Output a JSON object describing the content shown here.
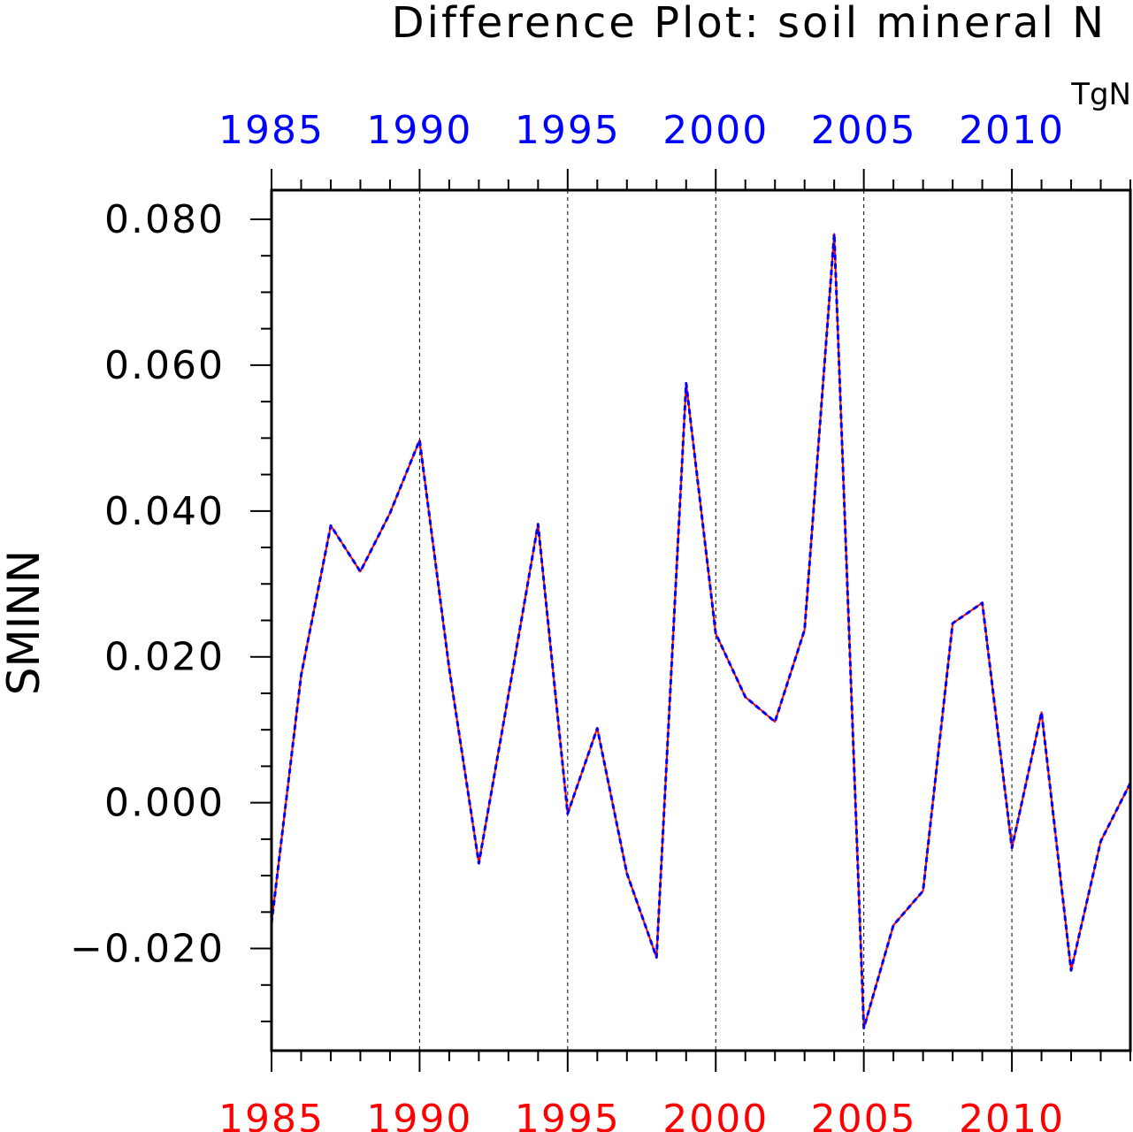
{
  "chart_data": {
    "type": "line",
    "title": "Difference Plot: soil mineral N",
    "units": "TgN",
    "ylabel": "SMINN",
    "xlim": [
      1985,
      2014
    ],
    "ylim": [
      -0.034,
      0.084
    ],
    "x_ticks": [
      "1985",
      "1990",
      "1995",
      "2000",
      "2005",
      "2010"
    ],
    "y_ticks": [
      "0.080",
      "0.060",
      "0.040",
      "0.020",
      "0.000",
      "−0.020"
    ],
    "x_tick_values": [
      1985,
      1990,
      1995,
      2000,
      2005,
      2010
    ],
    "y_tick_values": [
      0.08,
      0.06,
      0.04,
      0.02,
      0.0,
      -0.02
    ],
    "grid": "vertical dashed at major x ticks",
    "x": [
      1985,
      1986,
      1987,
      1988,
      1989,
      1990,
      1991,
      1992,
      1993,
      1994,
      1995,
      1996,
      1997,
      1998,
      1999,
      2000,
      2001,
      2002,
      2003,
      2004,
      2005,
      2006,
      2007,
      2008,
      2009,
      2010,
      2011,
      2012,
      2013,
      2014
    ],
    "series": [
      {
        "color": "#ff0000",
        "style": "solid",
        "values": [
          -0.0165,
          0.0175,
          0.038,
          0.0317,
          0.0397,
          0.0497,
          0.0184,
          -0.0083,
          0.0148,
          0.0382,
          -0.0015,
          0.0102,
          -0.0097,
          -0.0212,
          0.0575,
          0.0232,
          0.0145,
          0.0111,
          0.0237,
          0.078,
          -0.0309,
          -0.0168,
          -0.0121,
          0.0246,
          0.0274,
          -0.0062,
          0.0124,
          -0.023,
          -0.0053,
          0.0027
        ]
      },
      {
        "color": "#0000ff",
        "style": "dashed",
        "values": [
          -0.0165,
          0.0175,
          0.038,
          0.0317,
          0.0397,
          0.0497,
          0.0184,
          -0.0083,
          0.0148,
          0.0382,
          -0.0015,
          0.0102,
          -0.0097,
          -0.0212,
          0.0575,
          0.0232,
          0.0145,
          0.0111,
          0.0237,
          0.078,
          -0.0309,
          -0.0168,
          -0.0121,
          0.0246,
          0.0274,
          -0.0062,
          0.0124,
          -0.023,
          -0.0053,
          0.0027
        ]
      }
    ]
  },
  "colors": {
    "bottom_axis_labels": "#ff0000",
    "top_axis_labels": "#0000ff",
    "axis": "#000000"
  }
}
